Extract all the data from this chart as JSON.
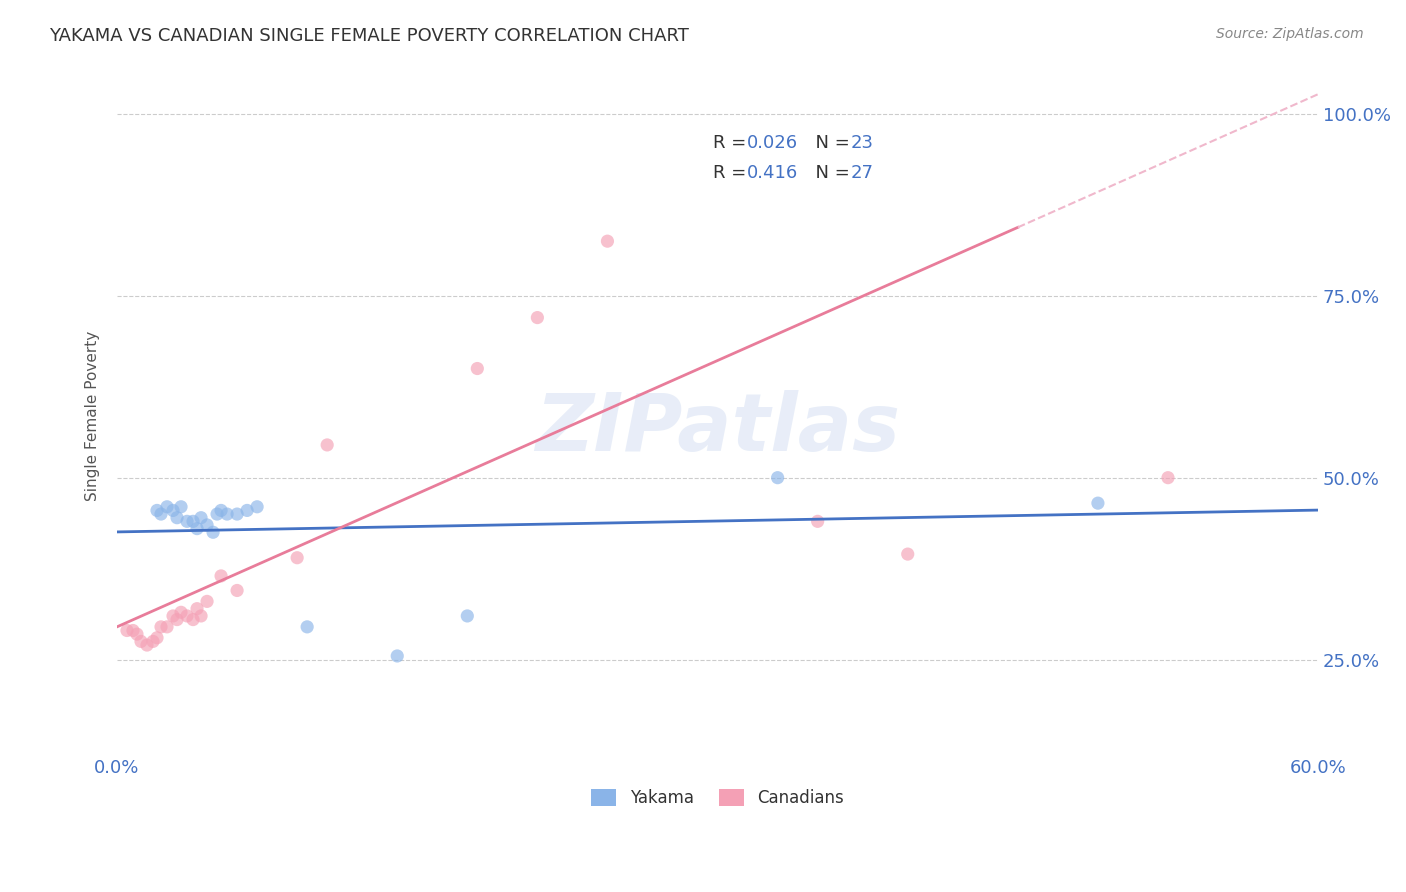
{
  "title": "YAKAMA VS CANADIAN SINGLE FEMALE POVERTY CORRELATION CHART",
  "source": "Source: ZipAtlas.com",
  "ylabel": "Single Female Poverty",
  "xlim": [
    0.0,
    0.6
  ],
  "ylim": [
    0.12,
    1.05
  ],
  "yticks": [
    0.25,
    0.5,
    0.75,
    1.0
  ],
  "ytick_labels": [
    "25.0%",
    "50.0%",
    "75.0%",
    "100.0%"
  ],
  "xtick_positions": [
    0.0,
    0.12,
    0.24,
    0.36,
    0.48,
    0.6
  ],
  "xtick_labels": [
    "0.0%",
    "",
    "",
    "",
    "",
    "60.0%"
  ],
  "yakama_x": [
    0.02,
    0.022,
    0.025,
    0.028,
    0.03,
    0.032,
    0.035,
    0.038,
    0.04,
    0.042,
    0.045,
    0.048,
    0.05,
    0.052,
    0.055,
    0.06,
    0.065,
    0.07,
    0.095,
    0.14,
    0.175,
    0.33,
    0.49
  ],
  "yakama_y": [
    0.455,
    0.45,
    0.46,
    0.455,
    0.445,
    0.46,
    0.44,
    0.44,
    0.43,
    0.445,
    0.435,
    0.425,
    0.45,
    0.455,
    0.45,
    0.45,
    0.455,
    0.46,
    0.295,
    0.255,
    0.31,
    0.5,
    0.465
  ],
  "canadians_x": [
    0.005,
    0.008,
    0.01,
    0.012,
    0.015,
    0.018,
    0.02,
    0.022,
    0.025,
    0.028,
    0.03,
    0.032,
    0.035,
    0.038,
    0.04,
    0.042,
    0.045,
    0.052,
    0.06,
    0.09,
    0.105,
    0.18,
    0.21,
    0.245,
    0.35,
    0.395,
    0.525
  ],
  "canadians_y": [
    0.29,
    0.29,
    0.285,
    0.275,
    0.27,
    0.275,
    0.28,
    0.295,
    0.295,
    0.31,
    0.305,
    0.315,
    0.31,
    0.305,
    0.32,
    0.31,
    0.33,
    0.365,
    0.345,
    0.39,
    0.545,
    0.65,
    0.72,
    0.825,
    0.44,
    0.395,
    0.5
  ],
  "yakama_color": "#8ab4e8",
  "canadians_color": "#f4a0b5",
  "yakama_line_color": "#4472c4",
  "canadians_line_color": "#e87c9a",
  "diag_line_color": "#f0b8cc",
  "R_yakama": 0.026,
  "N_yakama": 23,
  "R_canadians": 0.416,
  "N_canadians": 27,
  "bg_color": "#ffffff",
  "grid_color": "#cccccc",
  "marker_size": 90,
  "marker_alpha": 0.65,
  "title_color": "#333333",
  "axis_color": "#555555",
  "ytick_color": "#4472c4",
  "xtick_color": "#4472c4",
  "legend_text_color": "#333333",
  "legend_value_color": "#4472c4"
}
